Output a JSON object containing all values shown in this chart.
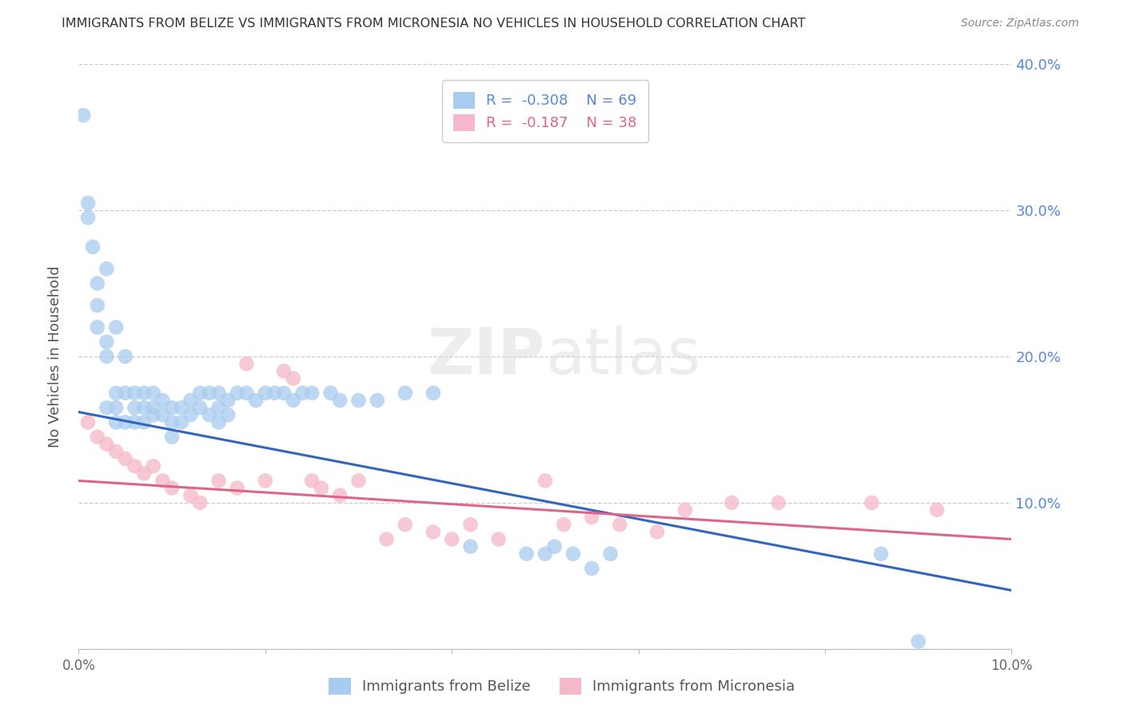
{
  "title": "IMMIGRANTS FROM BELIZE VS IMMIGRANTS FROM MICRONESIA NO VEHICLES IN HOUSEHOLD CORRELATION CHART",
  "source": "Source: ZipAtlas.com",
  "ylabel": "No Vehicles in Household",
  "r1": -0.308,
  "n1": 69,
  "r2": -0.187,
  "n2": 38,
  "xlim": [
    0.0,
    0.1
  ],
  "ylim": [
    0.0,
    0.4
  ],
  "xticks": [
    0.0,
    0.02,
    0.04,
    0.06,
    0.08,
    0.1
  ],
  "yticks": [
    0.0,
    0.1,
    0.2,
    0.3,
    0.4
  ],
  "xtick_labels": [
    "0.0%",
    "",
    "",
    "",
    "",
    "10.0%"
  ],
  "right_tick_strs": [
    "",
    "10.0%",
    "20.0%",
    "30.0%",
    "40.0%"
  ],
  "legend_label1": "Immigrants from Belize",
  "legend_label2": "Immigrants from Micronesia",
  "color_belize": "#A8CCF0",
  "color_micronesia": "#F5B8C8",
  "line_color_belize": "#3366BB",
  "line_color_micronesia": "#DD6688",
  "background": "#FFFFFF",
  "grid_color": "#CCCCCC",
  "title_color": "#333333",
  "right_tick_color": "#5588DD",
  "belize_x": [
    0.0005,
    0.001,
    0.001,
    0.0015,
    0.002,
    0.002,
    0.002,
    0.003,
    0.003,
    0.003,
    0.003,
    0.004,
    0.004,
    0.004,
    0.004,
    0.005,
    0.005,
    0.005,
    0.006,
    0.006,
    0.006,
    0.007,
    0.007,
    0.007,
    0.008,
    0.008,
    0.008,
    0.009,
    0.009,
    0.01,
    0.01,
    0.01,
    0.011,
    0.011,
    0.012,
    0.012,
    0.013,
    0.013,
    0.014,
    0.014,
    0.015,
    0.015,
    0.015,
    0.016,
    0.016,
    0.017,
    0.018,
    0.019,
    0.02,
    0.021,
    0.022,
    0.023,
    0.024,
    0.025,
    0.027,
    0.028,
    0.03,
    0.032,
    0.035,
    0.038,
    0.042,
    0.048,
    0.05,
    0.051,
    0.053,
    0.055,
    0.057,
    0.086,
    0.09
  ],
  "belize_y": [
    0.365,
    0.295,
    0.305,
    0.275,
    0.25,
    0.235,
    0.22,
    0.21,
    0.2,
    0.26,
    0.165,
    0.175,
    0.165,
    0.155,
    0.22,
    0.2,
    0.175,
    0.155,
    0.175,
    0.165,
    0.155,
    0.175,
    0.165,
    0.155,
    0.175,
    0.165,
    0.16,
    0.17,
    0.16,
    0.165,
    0.155,
    0.145,
    0.165,
    0.155,
    0.17,
    0.16,
    0.175,
    0.165,
    0.175,
    0.16,
    0.175,
    0.165,
    0.155,
    0.17,
    0.16,
    0.175,
    0.175,
    0.17,
    0.175,
    0.175,
    0.175,
    0.17,
    0.175,
    0.175,
    0.175,
    0.17,
    0.17,
    0.17,
    0.175,
    0.175,
    0.07,
    0.065,
    0.065,
    0.07,
    0.065,
    0.055,
    0.065,
    0.065,
    0.005
  ],
  "micronesia_x": [
    0.001,
    0.002,
    0.003,
    0.004,
    0.005,
    0.006,
    0.007,
    0.008,
    0.009,
    0.01,
    0.012,
    0.013,
    0.015,
    0.017,
    0.018,
    0.02,
    0.022,
    0.023,
    0.025,
    0.026,
    0.028,
    0.03,
    0.033,
    0.035,
    0.038,
    0.04,
    0.042,
    0.045,
    0.05,
    0.052,
    0.055,
    0.058,
    0.062,
    0.065,
    0.07,
    0.075,
    0.085,
    0.092
  ],
  "micronesia_y": [
    0.155,
    0.145,
    0.14,
    0.135,
    0.13,
    0.125,
    0.12,
    0.125,
    0.115,
    0.11,
    0.105,
    0.1,
    0.115,
    0.11,
    0.195,
    0.115,
    0.19,
    0.185,
    0.115,
    0.11,
    0.105,
    0.115,
    0.075,
    0.085,
    0.08,
    0.075,
    0.085,
    0.075,
    0.115,
    0.085,
    0.09,
    0.085,
    0.08,
    0.095,
    0.1,
    0.1,
    0.1,
    0.095
  ],
  "line_belize_x0": 0.0,
  "line_belize_y0": 0.162,
  "line_belize_x1": 0.1,
  "line_belize_y1": 0.04,
  "line_micronesia_x0": 0.0,
  "line_micronesia_y0": 0.115,
  "line_micronesia_x1": 0.1,
  "line_micronesia_y1": 0.075
}
